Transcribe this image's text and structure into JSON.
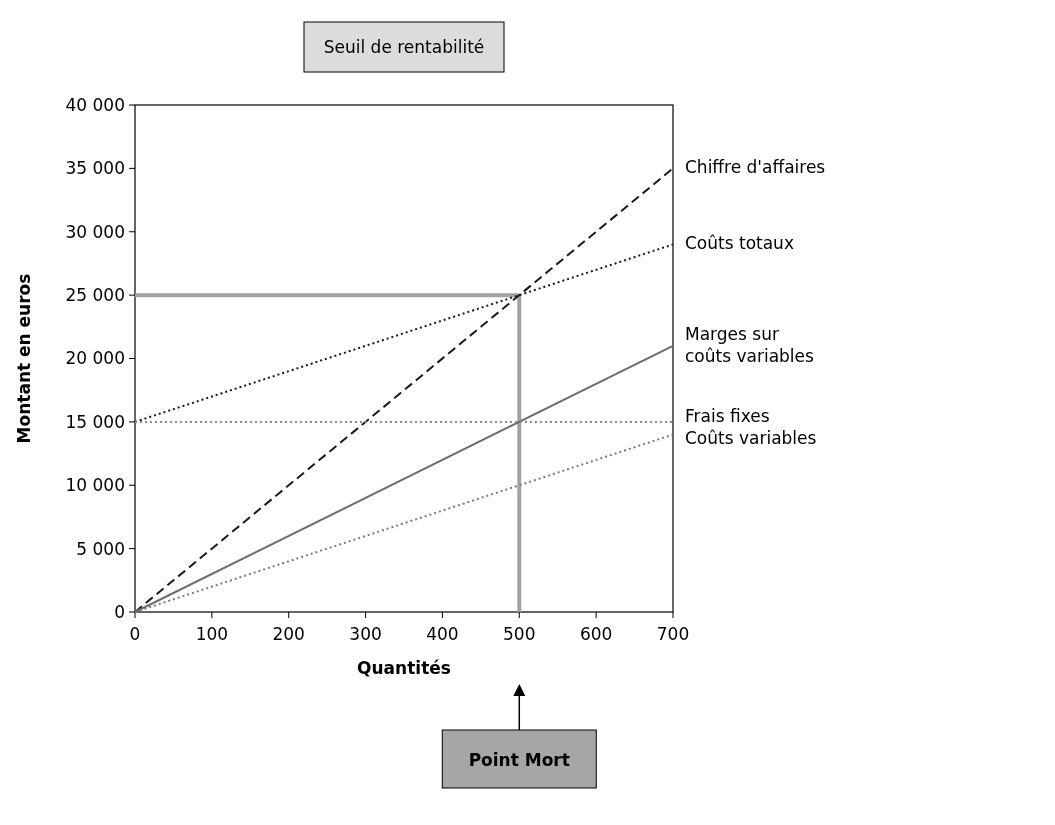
{
  "chart_data": {
    "type": "line",
    "title": "Seuil de rentabilité",
    "xlabel": "Quantités",
    "ylabel": "Montant en euros",
    "x": [
      0,
      700
    ],
    "series": [
      {
        "name": "Chiffre d'affaires",
        "color": "#1a1a1a",
        "line_style": "dashed",
        "values": [
          0,
          35000
        ]
      },
      {
        "name": "Coûts totaux",
        "color": "#1a1a1a",
        "line_style": "dotted",
        "values": [
          15000,
          29000
        ]
      },
      {
        "name": "Marges sur coûts variables",
        "color": "#6d6d6d",
        "line_style": "solid",
        "values": [
          0,
          21000
        ]
      },
      {
        "name": "Frais fixes",
        "color": "#8a8a8a",
        "line_style": "dotted",
        "values": [
          15000,
          15000
        ]
      },
      {
        "name": "Coûts variables",
        "color": "#7a7a7a",
        "line_style": "dotted",
        "values": [
          0,
          14000
        ]
      }
    ],
    "ref_lines": [
      {
        "axis": "y",
        "value": 25000,
        "color": "#a3a3a3"
      },
      {
        "axis": "x",
        "value": 500,
        "color": "#a3a3a3"
      }
    ],
    "xlim": [
      0,
      700
    ],
    "xticks": [
      0,
      100,
      200,
      300,
      400,
      500,
      600,
      700
    ],
    "ylim": [
      0,
      40000
    ],
    "yticks": [
      {
        "value": 0,
        "label": "0"
      },
      {
        "value": 5000,
        "label": "5 000"
      },
      {
        "value": 10000,
        "label": "10 000"
      },
      {
        "value": 15000,
        "label": "15 000"
      },
      {
        "value": 20000,
        "label": "20 000"
      },
      {
        "value": 25000,
        "label": "25 000"
      },
      {
        "value": 30000,
        "label": "30 000"
      },
      {
        "value": 35000,
        "label": "35 000"
      },
      {
        "value": 40000,
        "label": "40 000"
      }
    ],
    "annotations": [
      "Point Mort"
    ]
  }
}
